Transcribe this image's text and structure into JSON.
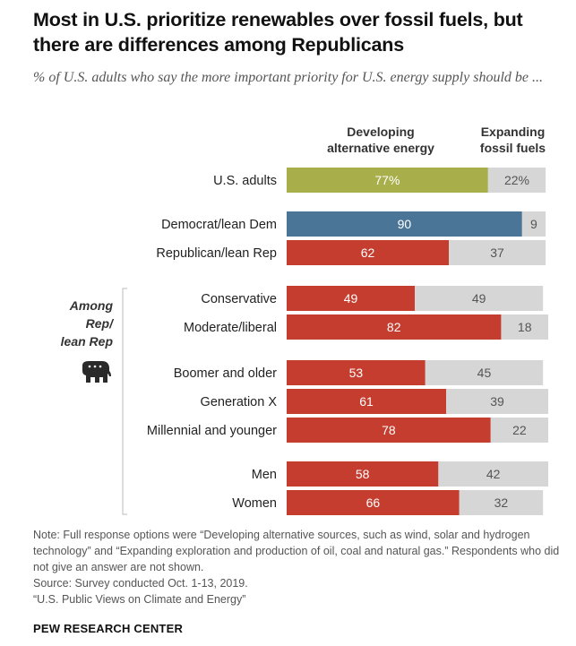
{
  "title": "Most in U.S. prioritize renewables over fossil fuels, but there are differences among Republicans",
  "subtitle": "% of U.S. adults who say the more important priority for U.S. energy supply should be ...",
  "colors": {
    "green": "#a7ae4a",
    "blue": "#4a7596",
    "red": "#c43d2f",
    "gray": "#d6d6d6"
  },
  "chart_data": {
    "type": "bar",
    "orientation": "horizontal",
    "stacked": true,
    "series_names": [
      "Developing alternative energy",
      "Expanding fossil fuels"
    ],
    "column_headers": [
      "Developing\nalternative energy",
      "Expanding\nfossil fuels"
    ],
    "group_label": "Among Rep/ lean Rep",
    "categories": [
      "U.S. adults",
      "Democrat/lean Dem",
      "Republican/lean Rep",
      "Conservative",
      "Moderate/liberal",
      "Boomer and older",
      "Generation X",
      "Millennial and younger",
      "Men",
      "Women"
    ],
    "series": [
      {
        "name": "Developing alternative energy",
        "values": [
          77,
          90,
          62,
          49,
          82,
          53,
          61,
          78,
          58,
          66
        ],
        "labels": [
          "77%",
          "90",
          "62",
          "49",
          "82",
          "53",
          "61",
          "78",
          "58",
          "66"
        ]
      },
      {
        "name": "Expanding fossil fuels",
        "values": [
          22,
          9,
          37,
          49,
          18,
          45,
          39,
          22,
          42,
          32
        ],
        "labels": [
          "22%",
          "9",
          "37",
          "49",
          "18",
          "45",
          "39",
          "22",
          "42",
          "32"
        ]
      }
    ],
    "bar_colors": [
      "green",
      "blue",
      "red",
      "red",
      "red",
      "red",
      "red",
      "red",
      "red",
      "red"
    ],
    "xlim": [
      0,
      100
    ]
  },
  "notes": [
    "Note: Full response options were “Developing alternative sources, such as wind, solar and hydrogen technology” and “Expanding exploration and production of oil, coal and natural gas.” Respondents who did not give an answer are not shown.",
    "Source: Survey conducted Oct. 1-13, 2019.",
    "“U.S. Public Views on Climate and Energy”"
  ],
  "brand": "PEW RESEARCH CENTER",
  "icon": "republican-elephant-icon"
}
